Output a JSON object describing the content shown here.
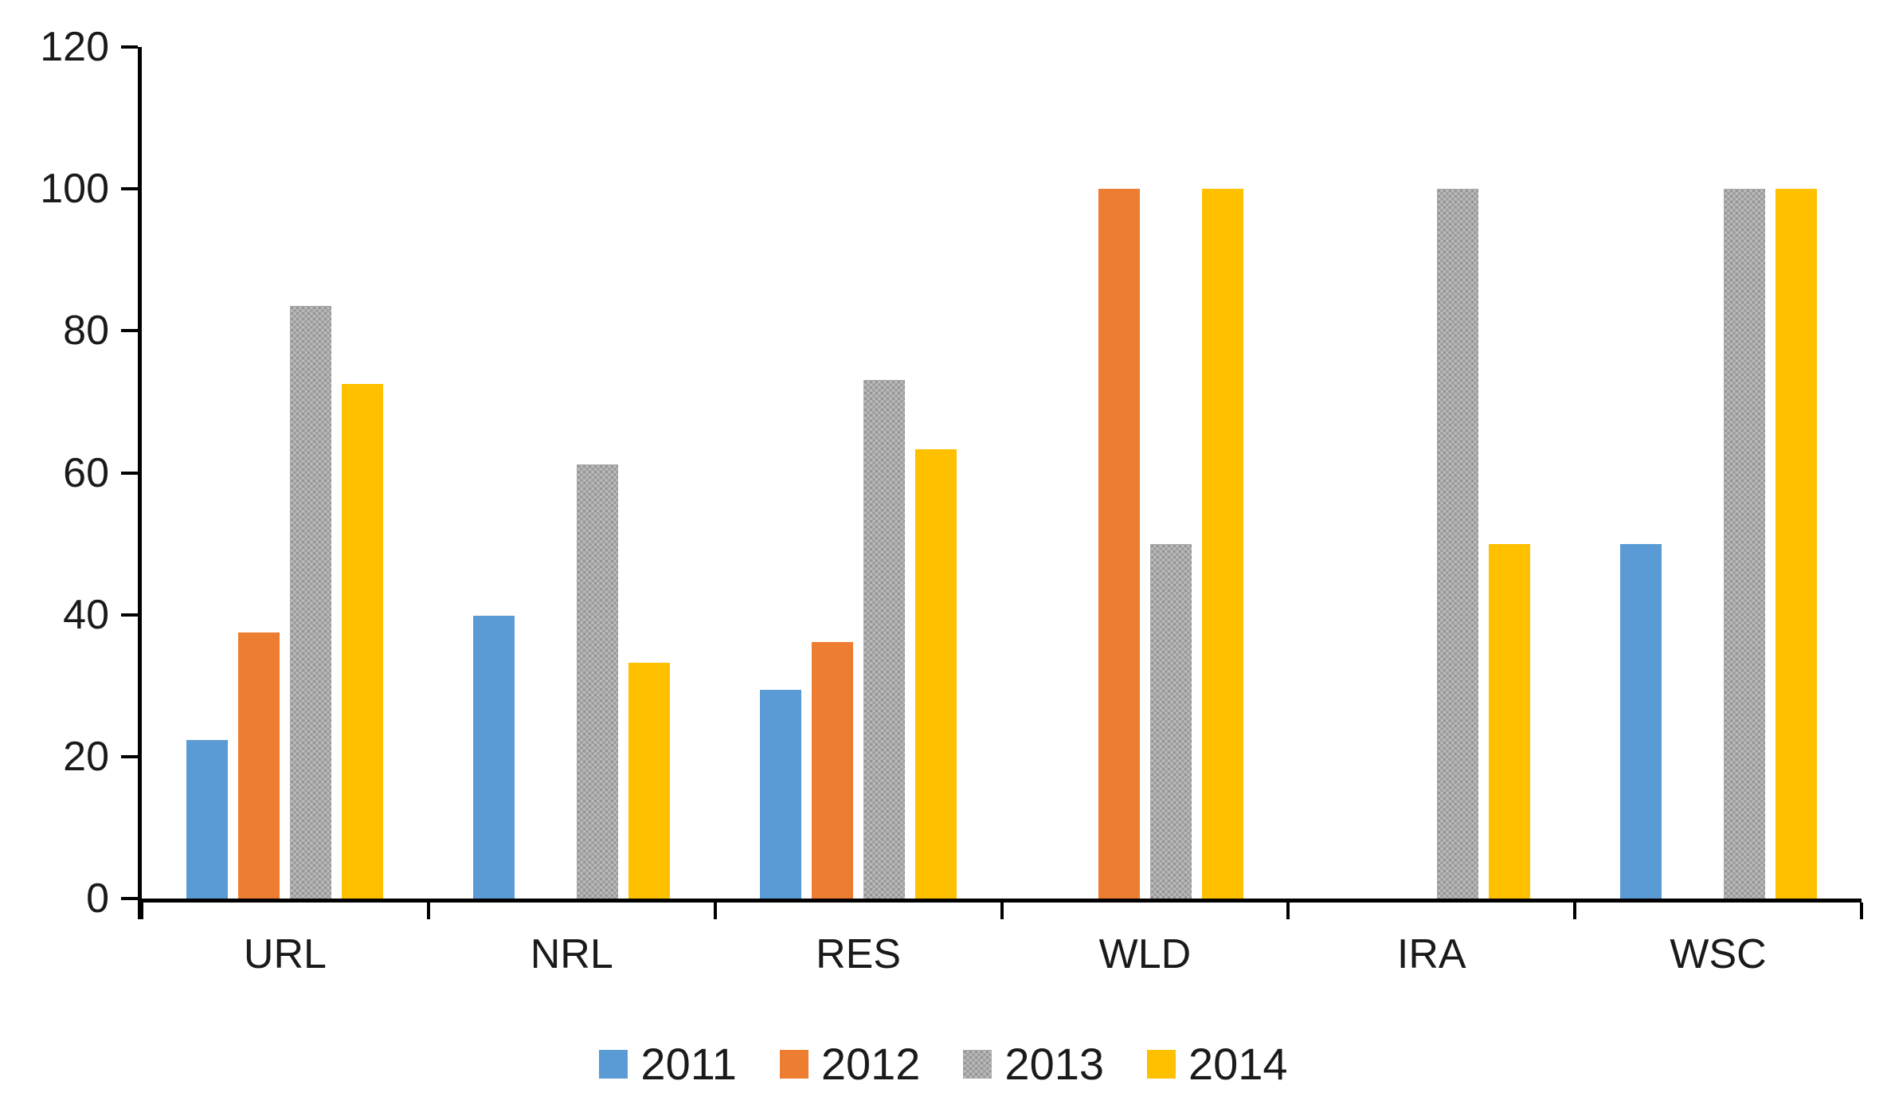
{
  "chart_data": {
    "type": "bar",
    "title": "",
    "xlabel": "",
    "ylabel": "",
    "categories": [
      "URL",
      "NRL",
      "RES",
      "WLD",
      "IRA",
      "WSC"
    ],
    "series": [
      {
        "name": "2011",
        "color": "#5B9BD5",
        "pattern": false,
        "values": [
          22.3,
          39.8,
          29.4,
          null,
          null,
          50
        ]
      },
      {
        "name": "2012",
        "color": "#ED7D31",
        "pattern": false,
        "values": [
          37.5,
          null,
          36.2,
          100,
          null,
          null
        ]
      },
      {
        "name": "2013",
        "color": "#A6A6A6",
        "pattern": true,
        "values": [
          83.5,
          61.2,
          73.1,
          50,
          100,
          100
        ]
      },
      {
        "name": "2014",
        "color": "#FFC000",
        "pattern": false,
        "values": [
          72.5,
          33.2,
          63.3,
          100,
          50,
          100
        ]
      }
    ],
    "ylim": [
      0,
      120
    ],
    "yticks": [
      0,
      20,
      40,
      60,
      80,
      100,
      120
    ],
    "grid": false,
    "legend_position": "bottom",
    "legend_labels": [
      "2011",
      "2012",
      "2013",
      "2014"
    ],
    "axis_color": "#000000",
    "background": "#FFFFFF"
  }
}
